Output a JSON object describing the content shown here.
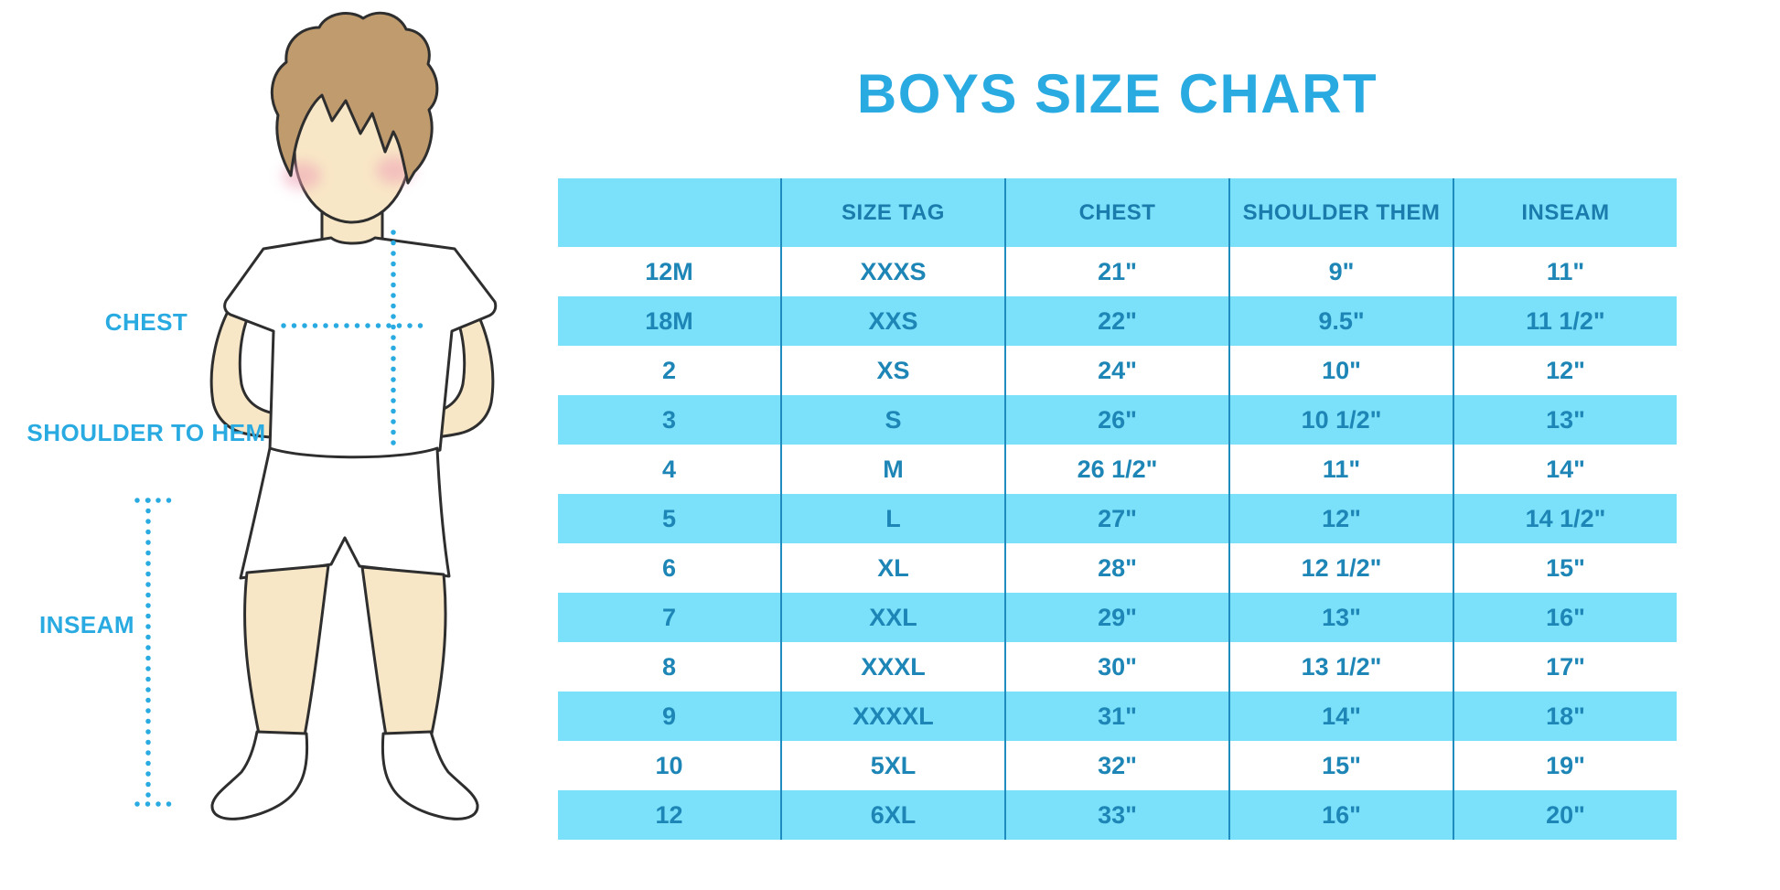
{
  "chart_data": {
    "type": "table",
    "title": "BOYS SIZE CHART",
    "columns": [
      "",
      "SIZE TAG",
      "CHEST",
      "SHOULDER THEM",
      "INSEAM"
    ],
    "rows": [
      [
        "12M",
        "XXXS",
        "21\"",
        "9\"",
        "11\""
      ],
      [
        "18M",
        "XXS",
        "22\"",
        "9.5\"",
        "11 1/2\""
      ],
      [
        "2",
        "XS",
        "24\"",
        "10\"",
        "12\""
      ],
      [
        "3",
        "S",
        "26\"",
        "10 1/2\"",
        "13\""
      ],
      [
        "4",
        "M",
        "26 1/2\"",
        "11\"",
        "14\""
      ],
      [
        "5",
        "L",
        "27\"",
        "12\"",
        "14 1/2\""
      ],
      [
        "6",
        "XL",
        "28\"",
        "12 1/2\"",
        "15\""
      ],
      [
        "7",
        "XXL",
        "29\"",
        "13\"",
        "16\""
      ],
      [
        "8",
        "XXXL",
        "30\"",
        "13 1/2\"",
        "17\""
      ],
      [
        "9",
        "XXXXL",
        "31\"",
        "14\"",
        "18\""
      ],
      [
        "10",
        "5XL",
        "32\"",
        "15\"",
        "19\""
      ],
      [
        "12",
        "6XL",
        "33\"",
        "16\"",
        "20\""
      ]
    ],
    "layout": {
      "stripes": "alternating",
      "grid": "vertical-dividers-only",
      "legend": "none"
    }
  },
  "diagram": {
    "labels": {
      "chest": "CHEST",
      "shoulder_to_hem": "SHOULDER TO HEM",
      "inseam": "INSEAM"
    }
  },
  "colors": {
    "accent": "#29ABE2",
    "stripe": "#7BE0F9",
    "grid": "#1E8CBE",
    "head_text": "#1A7CAC",
    "cell_text": "#1E86B6",
    "hair": "#C09B6E",
    "skin": "#F8E7C6",
    "cheek": "#EFA0B5",
    "outline": "#2E2E2E"
  }
}
